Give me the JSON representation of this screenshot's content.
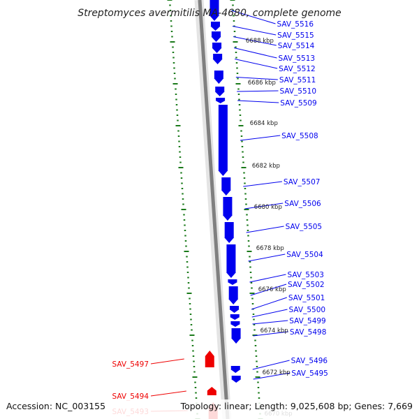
{
  "title": "Streptomyces avermitilis MA-4680, complete genome",
  "footer": {
    "accession": "Accession: NC_003155",
    "summary": "Topology: linear; Length: 9,025,608 bp; Genes: 7,669"
  },
  "colors": {
    "forward_gene": "#0000ee",
    "reverse_gene": "#ee0000",
    "tick": "#1a7a1a",
    "backbone": "#808080"
  },
  "kbp_labels": [
    "6688 kbp",
    "6686 kbp",
    "6684 kbp",
    "6682 kbp",
    "6680 kbp",
    "6678 kbp",
    "6676 kbp",
    "6674 kbp",
    "6672 kbp",
    "6670 kbp"
  ],
  "forward_genes": [
    "SAV_5516",
    "SAV_5515",
    "SAV_5514",
    "SAV_5513",
    "SAV_5512",
    "SAV_5511",
    "SAV_5510",
    "SAV_5509",
    "SAV_5508",
    "SAV_5507",
    "SAV_5506",
    "SAV_5505",
    "SAV_5504",
    "SAV_5503",
    "SAV_5502",
    "SAV_5501",
    "SAV_5500",
    "SAV_5499",
    "SAV_5498",
    "SAV_5496",
    "SAV_5495"
  ],
  "reverse_genes": [
    "SAV_5497",
    "SAV_5494",
    "SAV_5493"
  ]
}
